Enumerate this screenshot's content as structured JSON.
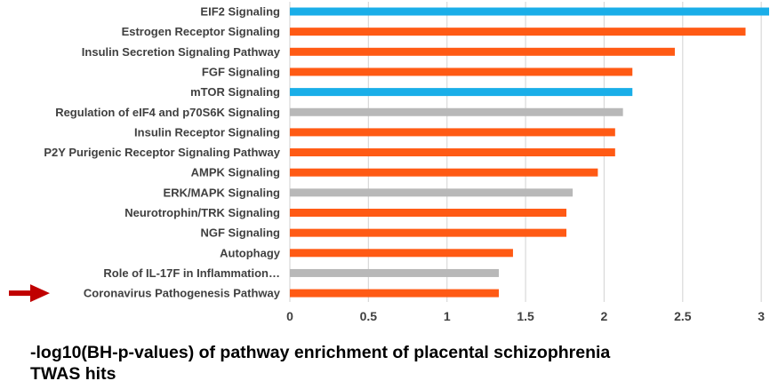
{
  "chart_data": {
    "type": "bar",
    "orientation": "horizontal",
    "categories": [
      "EIF2 Signaling",
      "Estrogen Receptor Signaling",
      "Insulin Secretion Signaling Pathway",
      "FGF Signaling",
      "mTOR Signaling",
      "Regulation of eIF4 and p70S6K Signaling",
      "Insulin Receptor Signaling",
      "P2Y Purigenic Receptor Signaling Pathway",
      "AMPK Signaling",
      "ERK/MAPK Signaling",
      "Neurotrophin/TRK Signaling",
      "NGF Signaling",
      "Autophagy",
      "Role of IL-17F in Inflammation…",
      "Coronavirus Pathogenesis Pathway"
    ],
    "values": [
      3.05,
      2.9,
      2.45,
      2.18,
      2.18,
      2.12,
      2.07,
      2.07,
      1.96,
      1.8,
      1.76,
      1.76,
      1.42,
      1.33,
      1.33
    ],
    "bar_colors": [
      "#1aaee8",
      "#ff5a14",
      "#ff5a14",
      "#ff5a14",
      "#1aaee8",
      "#b8b8b8",
      "#ff5a14",
      "#ff5a14",
      "#ff5a14",
      "#b8b8b8",
      "#ff5a14",
      "#ff5a14",
      "#ff5a14",
      "#b8b8b8",
      "#ff5a14"
    ],
    "xlim": [
      0,
      3.05
    ],
    "x_ticks": [
      0,
      0.5,
      1,
      1.5,
      2,
      2.5,
      3
    ],
    "x_tick_labels": [
      "0",
      "0.5",
      "1",
      "1.5",
      "2",
      "2.5",
      "3"
    ],
    "grid": "vertical",
    "highlighted_category": "Coronavirus Pathogenesis Pathway",
    "arrow_color": "#c00000",
    "title": "",
    "xlabel": "",
    "ylabel": ""
  },
  "caption": {
    "line1": "-log10(BH-p-values) of pathway enrichment of placental schizophrenia",
    "line2": "TWAS hits"
  },
  "colors": {
    "orange": "#ff5a14",
    "blue": "#1aaee8",
    "gray": "#b8b8b8",
    "gridline": "#d9d9d9",
    "text": "#404040"
  }
}
